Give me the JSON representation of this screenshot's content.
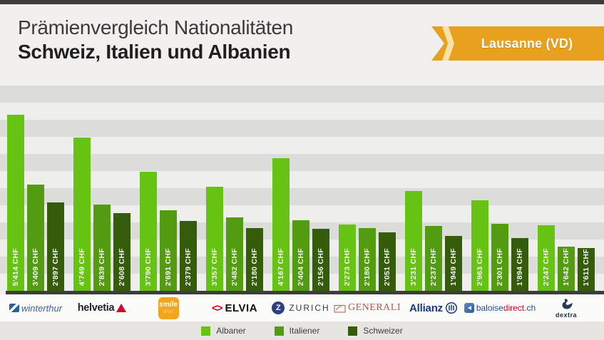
{
  "header": {
    "title_line1": "Prämienvergleich Nationalitäten",
    "title_line2": "Schweiz, Italien und Albanien",
    "banner_label": "Lausanne (VD)"
  },
  "colors": {
    "banner_orange": "#e8a11e",
    "banner_chevron": "#f9e0a6",
    "stripe_dark": "#dcdcda",
    "stripe_light": "#eeeeec",
    "baseline": "#3d3d3b",
    "albaner_green": "#67c313",
    "italiener_green": "#539c12",
    "schweizer_green": "#355c0b"
  },
  "chart_data": {
    "type": "bar",
    "unit": "CHF",
    "value_label_suffix": " CHF",
    "thousands_separator": "'",
    "categories": [
      "Winterthur",
      "Helvetia",
      "Smile Direct",
      "Elvia",
      "Zurich",
      "Generali",
      "Allianz",
      "Baloise Direct",
      "Dextra"
    ],
    "series": [
      {
        "name": "Albaner",
        "color": "#67c313",
        "values": [
          5414,
          4749,
          3790,
          3357,
          4167,
          2273,
          3231,
          2963,
          2247
        ]
      },
      {
        "name": "Italiener",
        "color": "#539c12",
        "values": [
          3409,
          2839,
          2691,
          2482,
          2404,
          2180,
          2237,
          2301,
          1642
        ]
      },
      {
        "name": "Schweizer",
        "color": "#355c0b",
        "values": [
          2897,
          2608,
          2379,
          2180,
          2156,
          2051,
          1949,
          1894,
          1611
        ]
      }
    ],
    "legend_position": "bottom",
    "grid": "horizontal-stripes",
    "bar_value_labels": [
      "5'414 CHF",
      "3'409 CHF",
      "2'897 CHF",
      "4'749 CHF",
      "2'839 CHF",
      "2'608 CHF",
      "3'790 CHF",
      "2'691 CHF",
      "2'379 CHF",
      "3'357 CHF",
      "2'482 CHF",
      "2'180 CHF",
      "4'167 CHF",
      "2'404 CHF",
      "2'156 CHF",
      "2'273 CHF",
      "2'180 CHF",
      "2'051 CHF",
      "3'231 CHF",
      "2'237 CHF",
      "1'949 CHF",
      "2'963 CHF",
      "2'301 CHF",
      "1'894 CHF",
      "2'247 CHF",
      "1'642 CHF",
      "1'611 CHF"
    ]
  },
  "logos": [
    {
      "id": "winterthur",
      "text": "winterthur"
    },
    {
      "id": "helvetia",
      "text": "helvetia"
    },
    {
      "id": "smile-direct",
      "text": "smile",
      "subtext": "direct"
    },
    {
      "id": "elvia",
      "marks": "<>",
      "text": "ELVIA"
    },
    {
      "id": "zurich",
      "initial": "Z",
      "text": "ZURICH"
    },
    {
      "id": "generali",
      "text": "GENERALI"
    },
    {
      "id": "allianz",
      "text": "Allianz"
    },
    {
      "id": "baloisedirect",
      "part1": "baloise",
      "part2": "direct",
      "part3": ".ch"
    },
    {
      "id": "dextra",
      "text": "dextra"
    }
  ],
  "legend": [
    {
      "label": "Albaner",
      "color": "#67c313"
    },
    {
      "label": "Italiener",
      "color": "#539c12"
    },
    {
      "label": "Schweizer",
      "color": "#355c0b"
    }
  ]
}
